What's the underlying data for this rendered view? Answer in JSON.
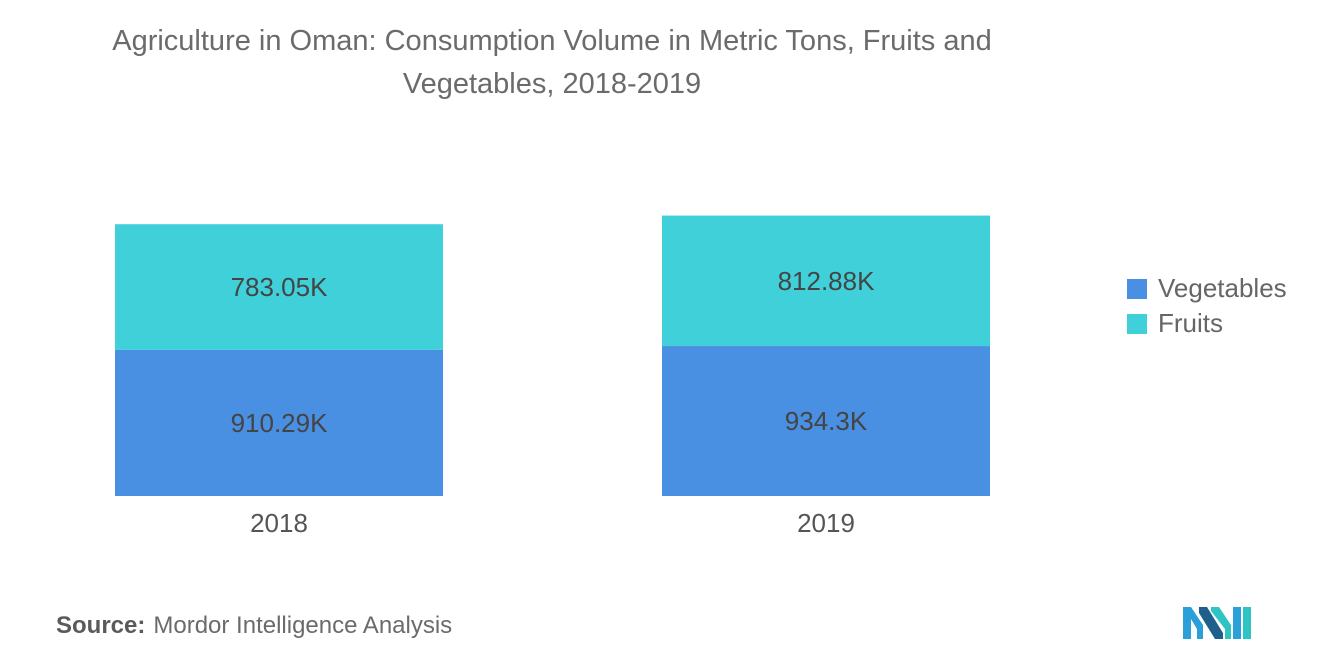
{
  "title_line1": "Agriculture in Oman: Consumption Volume in Metric Tons, Fruits and",
  "title_line2": "Vegetables, 2018-2019",
  "source_label": "Source:",
  "source_text": "Mordor Intelligence Analysis",
  "chart_data": {
    "type": "bar",
    "stacked": true,
    "categories": [
      "2018",
      "2019"
    ],
    "series": [
      {
        "name": "Vegetables",
        "values": [
          910.29,
          934.3
        ],
        "labels": [
          "910.29K",
          "934.3K"
        ],
        "color": "#4a90e2"
      },
      {
        "name": "Fruits",
        "values": [
          783.05,
          812.88
        ],
        "labels": [
          "783.05K",
          "812.88K"
        ],
        "color": "#40d0da"
      }
    ],
    "unit": "K",
    "grid": false,
    "legend_position": "right"
  }
}
